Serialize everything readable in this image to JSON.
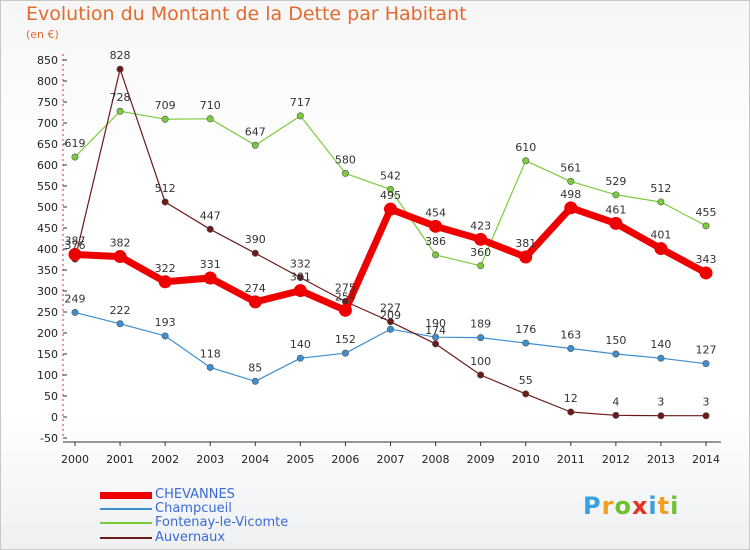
{
  "title": "Evolution du Montant de la Dette par Habitant",
  "unit": "(en €)",
  "chart_data": {
    "type": "line",
    "title": "Evolution du Montant de la Dette par Habitant",
    "subtitle": "(en €)",
    "x": [
      "2000",
      "2001",
      "2002",
      "2003",
      "2004",
      "2005",
      "2006",
      "2007",
      "2008",
      "2009",
      "2010",
      "2011",
      "2012",
      "2013",
      "2014"
    ],
    "ylim": [
      -50,
      850
    ],
    "yticks": [
      -50,
      0,
      50,
      100,
      150,
      200,
      250,
      300,
      350,
      400,
      450,
      500,
      550,
      600,
      650,
      700,
      750,
      800,
      850
    ],
    "grid": false,
    "legend_position": "bottom-left",
    "series": [
      {
        "name": "CHEVANNES",
        "color": "#ee0000",
        "values": [
          387,
          382,
          322,
          331,
          274,
          301,
          254,
          495,
          454,
          423,
          381,
          498,
          461,
          401,
          343
        ],
        "labels": [
          "387",
          "382",
          "322",
          "331",
          "274",
          "301",
          "254",
          "495",
          "454",
          "423",
          "381",
          "498",
          "461",
          "401",
          "343"
        ]
      },
      {
        "name": "Champcueil",
        "color": "#3d8fd0",
        "values": [
          249,
          222,
          193,
          118,
          85,
          140,
          152,
          209,
          190,
          189,
          176,
          163,
          150,
          140,
          127
        ],
        "labels": [
          "249",
          "222",
          "193",
          "118",
          "85",
          "140",
          "152",
          "209",
          "190",
          "189",
          "176",
          "163",
          "150",
          "140",
          "127"
        ]
      },
      {
        "name": "Fontenay-le-Vicomte",
        "color": "#7bcc3c",
        "values": [
          619,
          728,
          709,
          710,
          647,
          717,
          580,
          542,
          386,
          360,
          610,
          561,
          529,
          512,
          455
        ],
        "labels": [
          "619",
          "728",
          "709",
          "710",
          "647",
          "717",
          "580",
          "542",
          "386",
          "360",
          "610",
          "561",
          "529",
          "512",
          "455"
        ]
      },
      {
        "name": "Auvernaux",
        "color": "#6d1a1a",
        "values": [
          376,
          828,
          512,
          447,
          390,
          332,
          275,
          227,
          174,
          100,
          55,
          12,
          4,
          3,
          3
        ],
        "labels": [
          "376",
          "828",
          "512",
          "447",
          "390",
          "332",
          "275",
          "227",
          "174",
          "100",
          "55",
          "12",
          "4",
          "3",
          "3"
        ]
      }
    ]
  },
  "logo": {
    "text": "Proxiti",
    "colors": [
      "#3aa0e0",
      "#f0a020",
      "#70c030",
      "#e83020",
      "#3aa0e0",
      "#f0a020",
      "#70c030"
    ]
  }
}
